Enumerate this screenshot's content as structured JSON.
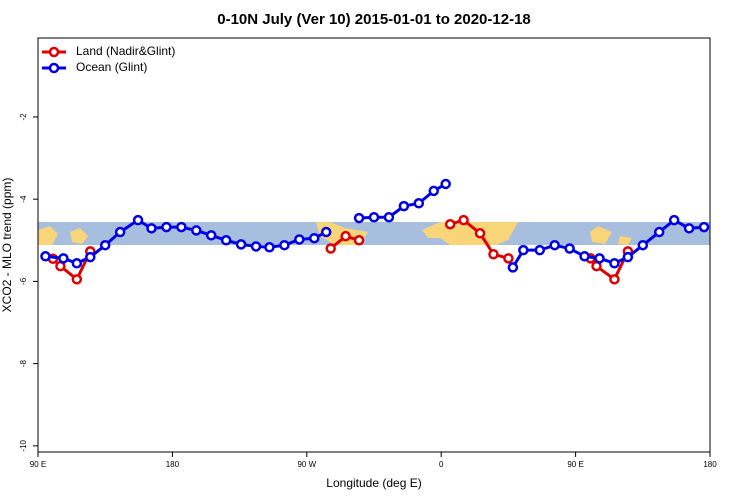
{
  "chart_data": {
    "type": "line",
    "title": "0-10N July (Ver 10)   2015-01-01 to 2020-12-18",
    "x_label": "Longitude (deg E)",
    "y_label": "XCO2 - MLO trend (ppm)",
    "xlim": [
      90,
      540
    ],
    "ylim": [
      -10.15,
      -0.08
    ],
    "xticks": [
      {
        "value": 90,
        "label": "90 E"
      },
      180,
      {
        "value": 270,
        "label": "90 W"
      },
      {
        "value": 360,
        "label": "0"
      },
      {
        "value": 450,
        "label": "90 E"
      },
      {
        "value": 540,
        "label": "180"
      }
    ],
    "yticks": [
      -2,
      -4,
      -6,
      -8,
      -10
    ],
    "legend": "top-left",
    "series": [
      {
        "name": "Land (Nadir&Glint)",
        "color": "#e00000",
        "x": [
          100,
          105,
          116,
          125,
          null,
          286,
          296,
          305,
          null,
          366,
          375,
          386,
          395,
          405,
          null,
          460,
          464,
          476,
          485
        ],
        "values": [
          -5.45,
          -5.63,
          -5.95,
          -5.27,
          null,
          -5.2,
          -4.9,
          -5.0,
          null,
          -4.61,
          -4.51,
          -4.83,
          -5.34,
          -5.44,
          null,
          -5.44,
          -5.63,
          -5.95,
          -5.27
        ]
      },
      {
        "name": "Ocean (Glint)",
        "color": "#0000e6",
        "x": [
          95,
          107,
          116,
          125,
          135,
          145,
          157,
          166,
          176,
          186,
          196,
          206,
          216,
          226,
          236,
          245,
          255,
          265,
          275,
          283,
          null,
          305,
          315,
          325,
          335,
          345,
          355,
          363,
          null,
          408,
          415,
          426,
          436,
          446,
          456,
          466,
          476,
          485,
          495,
          506,
          516,
          526,
          536
        ],
        "values": [
          -5.39,
          -5.44,
          -5.56,
          -5.41,
          -5.12,
          -4.8,
          -4.51,
          -4.71,
          -4.68,
          -4.68,
          -4.76,
          -4.88,
          -5.0,
          -5.1,
          -5.15,
          -5.17,
          -5.12,
          -4.98,
          -4.95,
          -4.8,
          null,
          -4.46,
          -4.44,
          -4.44,
          -4.17,
          -4.1,
          -3.8,
          -3.63,
          null,
          -5.66,
          -5.24,
          -5.24,
          -5.12,
          -5.2,
          -5.39,
          -5.44,
          -5.56,
          -5.41,
          -5.12,
          -4.8,
          -4.51,
          -4.71,
          -4.68
        ]
      }
    ]
  }
}
